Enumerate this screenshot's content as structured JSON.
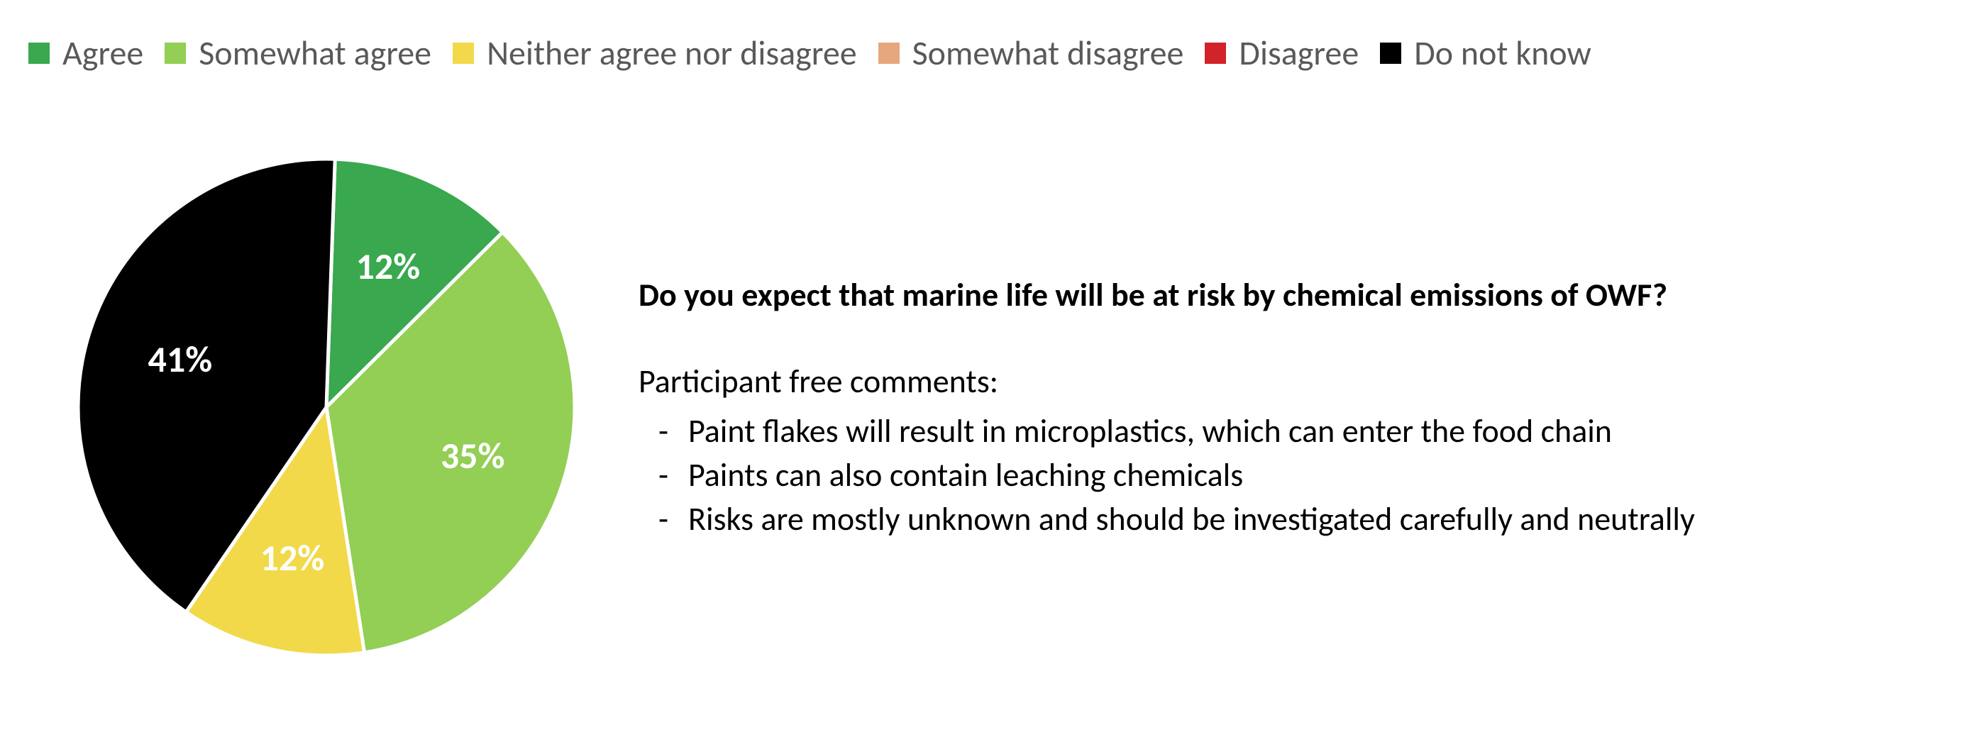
{
  "legend": {
    "items": [
      {
        "label": "Agree",
        "color": "#39a84e"
      },
      {
        "label": "Somewhat agree",
        "color": "#93ce55"
      },
      {
        "label": "Neither agree nor disagree",
        "color": "#f2d94a"
      },
      {
        "label": "Somewhat disagree",
        "color": "#e7a77d"
      },
      {
        "label": "Disagree",
        "color": "#d2232a"
      },
      {
        "label": "Do not know",
        "color": "#000000"
      }
    ],
    "fontsize": 48,
    "swatch_size": 30,
    "text_color": "#595959"
  },
  "pie": {
    "type": "pie",
    "diameter": 700,
    "rotation_deg": 2,
    "stroke": "#ffffff",
    "stroke_width": 5,
    "slices": [
      {
        "label": "12%",
        "value": 12,
        "color": "#39a84e",
        "label_color": "#ffffff"
      },
      {
        "label": "35%",
        "value": 35,
        "color": "#93ce55",
        "label_color": "#ffffff"
      },
      {
        "label": "12%",
        "value": 12,
        "color": "#f2d94a",
        "label_color": "#ffffff"
      },
      {
        "label": "41%",
        "value": 41,
        "color": "#000000",
        "label_color": "#ffffff"
      }
    ],
    "label_fontsize": 52
  },
  "text": {
    "question": "Do you expect that marine life will be at risk by chemical emissions of OWF?",
    "comments_title": "Participant free comments:",
    "comments": [
      "Paint flakes will result in microplastics, which can enter the food chain",
      "Paints can also contain leaching chemicals",
      "Risks are mostly unknown and should be investigated carefully and neutrally"
    ],
    "fontsize": 46,
    "question_fontsize": 46
  },
  "background_color": "#ffffff"
}
